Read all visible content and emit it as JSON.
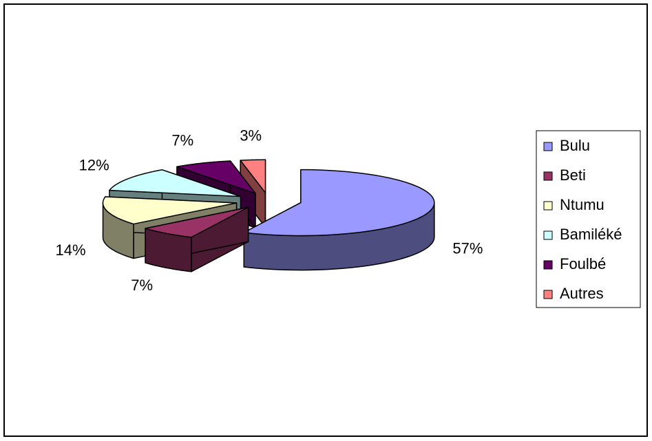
{
  "chart_data": {
    "type": "pie3d",
    "categories": [
      "Bulu",
      "Beti",
      "Ntumu",
      "Bamiléké",
      "Foulbé",
      "Autres"
    ],
    "values": [
      57,
      7,
      14,
      12,
      7,
      3
    ],
    "value_labels": [
      "57%",
      "7%",
      "14%",
      "12%",
      "7%",
      "3%"
    ],
    "colors": [
      "#9999ff",
      "#993366",
      "#ffffcc",
      "#ccffff",
      "#660066",
      "#ff8080"
    ],
    "legend": "right"
  }
}
